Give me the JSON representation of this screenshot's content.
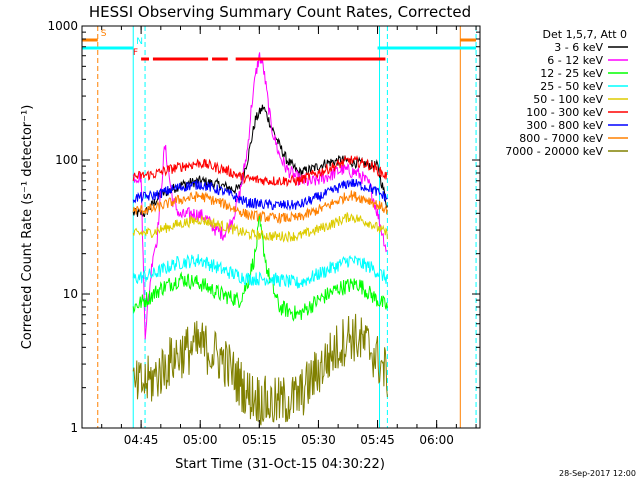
{
  "chart_data": {
    "type": "line",
    "title": "HESSI Observing Summary Count Rates, Corrected",
    "xlabel": "Start Time (31-Oct-15 04:30:22)",
    "ylabel": "Corrected Count Rate (s⁻¹ detector⁻¹)",
    "ylog": true,
    "ylim": [
      1,
      1000
    ],
    "xlim_minutes": [
      0,
      101
    ],
    "x_ticks": [
      {
        "label": "04:45",
        "minute": 15
      },
      {
        "label": "05:00",
        "minute": 30
      },
      {
        "label": "05:15",
        "minute": 45
      },
      {
        "label": "05:30",
        "minute": 60
      },
      {
        "label": "05:45",
        "minute": 75
      },
      {
        "label": "06:00",
        "minute": 90
      }
    ],
    "y_ticks": [
      {
        "label": "1",
        "value": 1
      },
      {
        "label": "10",
        "value": 10
      },
      {
        "label": "100",
        "value": 100
      },
      {
        "label": "1000",
        "value": 1000
      }
    ],
    "legend": {
      "header": "Det 1,5,7, Att 0",
      "placement": "right"
    },
    "series": [
      {
        "name": "3 - 6 keV",
        "color": "#000000",
        "x": [
          13,
          16,
          20,
          25,
          30,
          35,
          39,
          40,
          42,
          44,
          46,
          48,
          50,
          52,
          55,
          58,
          62,
          66,
          70,
          75,
          77.5
        ],
        "y": [
          40,
          40,
          55,
          65,
          70,
          65,
          60,
          62,
          100,
          200,
          250,
          180,
          130,
          100,
          80,
          85,
          95,
          100,
          95,
          90,
          45
        ]
      },
      {
        "name": "6 - 12 keV",
        "color": "#ff00ff",
        "x": [
          13,
          15,
          16,
          18,
          19,
          21,
          23,
          25,
          28,
          31,
          34,
          36,
          38,
          40,
          42,
          43,
          44,
          45,
          46,
          47,
          48,
          50,
          52,
          55,
          58,
          62,
          66,
          70,
          73,
          75,
          77.5
        ],
        "y": [
          75,
          75,
          5,
          20,
          25,
          130,
          50,
          38,
          40,
          38,
          30,
          28,
          35,
          55,
          120,
          250,
          420,
          600,
          500,
          300,
          180,
          110,
          85,
          72,
          68,
          75,
          85,
          80,
          65,
          40,
          20
        ]
      },
      {
        "name": "12 - 25 keV",
        "color": "#00ff00",
        "x": [
          13,
          16,
          20,
          25,
          30,
          35,
          40,
          42,
          44,
          45,
          47,
          50,
          55,
          60,
          65,
          70,
          75,
          77.5
        ],
        "y": [
          8,
          9,
          11,
          13,
          12,
          10,
          9,
          12,
          20,
          35,
          15,
          8,
          7,
          9,
          11,
          12,
          9,
          8
        ]
      },
      {
        "name": "25 - 50 keV",
        "color": "#00ffff",
        "x": [
          13,
          18,
          24,
          30,
          36,
          42,
          48,
          55,
          62,
          68,
          73,
          77.5
        ],
        "y": [
          13,
          14,
          17,
          18,
          15,
          13,
          13,
          12,
          15,
          18,
          16,
          13
        ]
      },
      {
        "name": "50 - 100 keV",
        "color": "#ddcc00",
        "x": [
          13,
          18,
          24,
          30,
          36,
          42,
          48,
          55,
          62,
          68,
          73,
          77.5
        ],
        "y": [
          28,
          29,
          33,
          36,
          32,
          28,
          27,
          27,
          32,
          38,
          34,
          28
        ]
      },
      {
        "name": "100 - 300 keV",
        "color": "#ff0000",
        "x": [
          13,
          18,
          24,
          30,
          36,
          42,
          48,
          55,
          62,
          68,
          73,
          77.5
        ],
        "y": [
          75,
          78,
          88,
          95,
          85,
          72,
          70,
          70,
          85,
          100,
          92,
          75
        ]
      },
      {
        "name": "300 - 800 keV",
        "color": "#0000ff",
        "x": [
          13,
          18,
          24,
          30,
          36,
          42,
          48,
          55,
          62,
          68,
          73,
          77.5
        ],
        "y": [
          52,
          54,
          62,
          66,
          58,
          48,
          46,
          46,
          56,
          68,
          62,
          52
        ]
      },
      {
        "name": "800 - 7000 keV",
        "color": "#ff8000",
        "x": [
          13,
          18,
          24,
          30,
          36,
          42,
          48,
          55,
          62,
          68,
          73,
          77.5
        ],
        "y": [
          42,
          43,
          50,
          54,
          47,
          39,
          37,
          37,
          45,
          55,
          50,
          42
        ]
      },
      {
        "name": "7000 - 20000 keV",
        "color": "#808000",
        "x": [
          13,
          18,
          24,
          30,
          36,
          42,
          48,
          55,
          62,
          68,
          73,
          77.5
        ],
        "y": [
          2,
          2.3,
          3.5,
          4.2,
          3.2,
          1.8,
          1.5,
          1.7,
          3.2,
          5,
          4,
          2.5
        ]
      }
    ],
    "event_bars": {
      "saa_left": {
        "label": "S",
        "x": [
          0,
          4
        ],
        "color": "#ff8000"
      },
      "night_left": {
        "label": "N",
        "x": [
          0,
          13
        ],
        "color": "#00ffff"
      },
      "flare": {
        "label": "F",
        "x": [
          15,
          77
        ],
        "gaps": [
          [
            17,
            18
          ],
          [
            32,
            33
          ],
          [
            37,
            39
          ]
        ],
        "color": "#ff0000"
      },
      "night_right": {
        "x": [
          75,
          100
        ],
        "color": "#00ffff"
      },
      "saa_right": {
        "x": [
          96,
          100
        ],
        "color": "#ff8000"
      }
    },
    "vertical_markers": [
      {
        "x": 4,
        "color": "#ff8000",
        "style": "dashed"
      },
      {
        "x": 13,
        "color": "#00ffff",
        "style": "solid"
      },
      {
        "x": 16,
        "color": "#00ffff",
        "style": "dashed"
      },
      {
        "x": 75.5,
        "color": "#00ffff",
        "style": "solid"
      },
      {
        "x": 77.5,
        "color": "#00ffff",
        "style": "dashed"
      },
      {
        "x": 96,
        "color": "#ff8000",
        "style": "solid"
      },
      {
        "x": 100,
        "color": "#00ffff",
        "style": "dashed"
      }
    ]
  },
  "footer_date": "28-Sep-2017 12:00"
}
